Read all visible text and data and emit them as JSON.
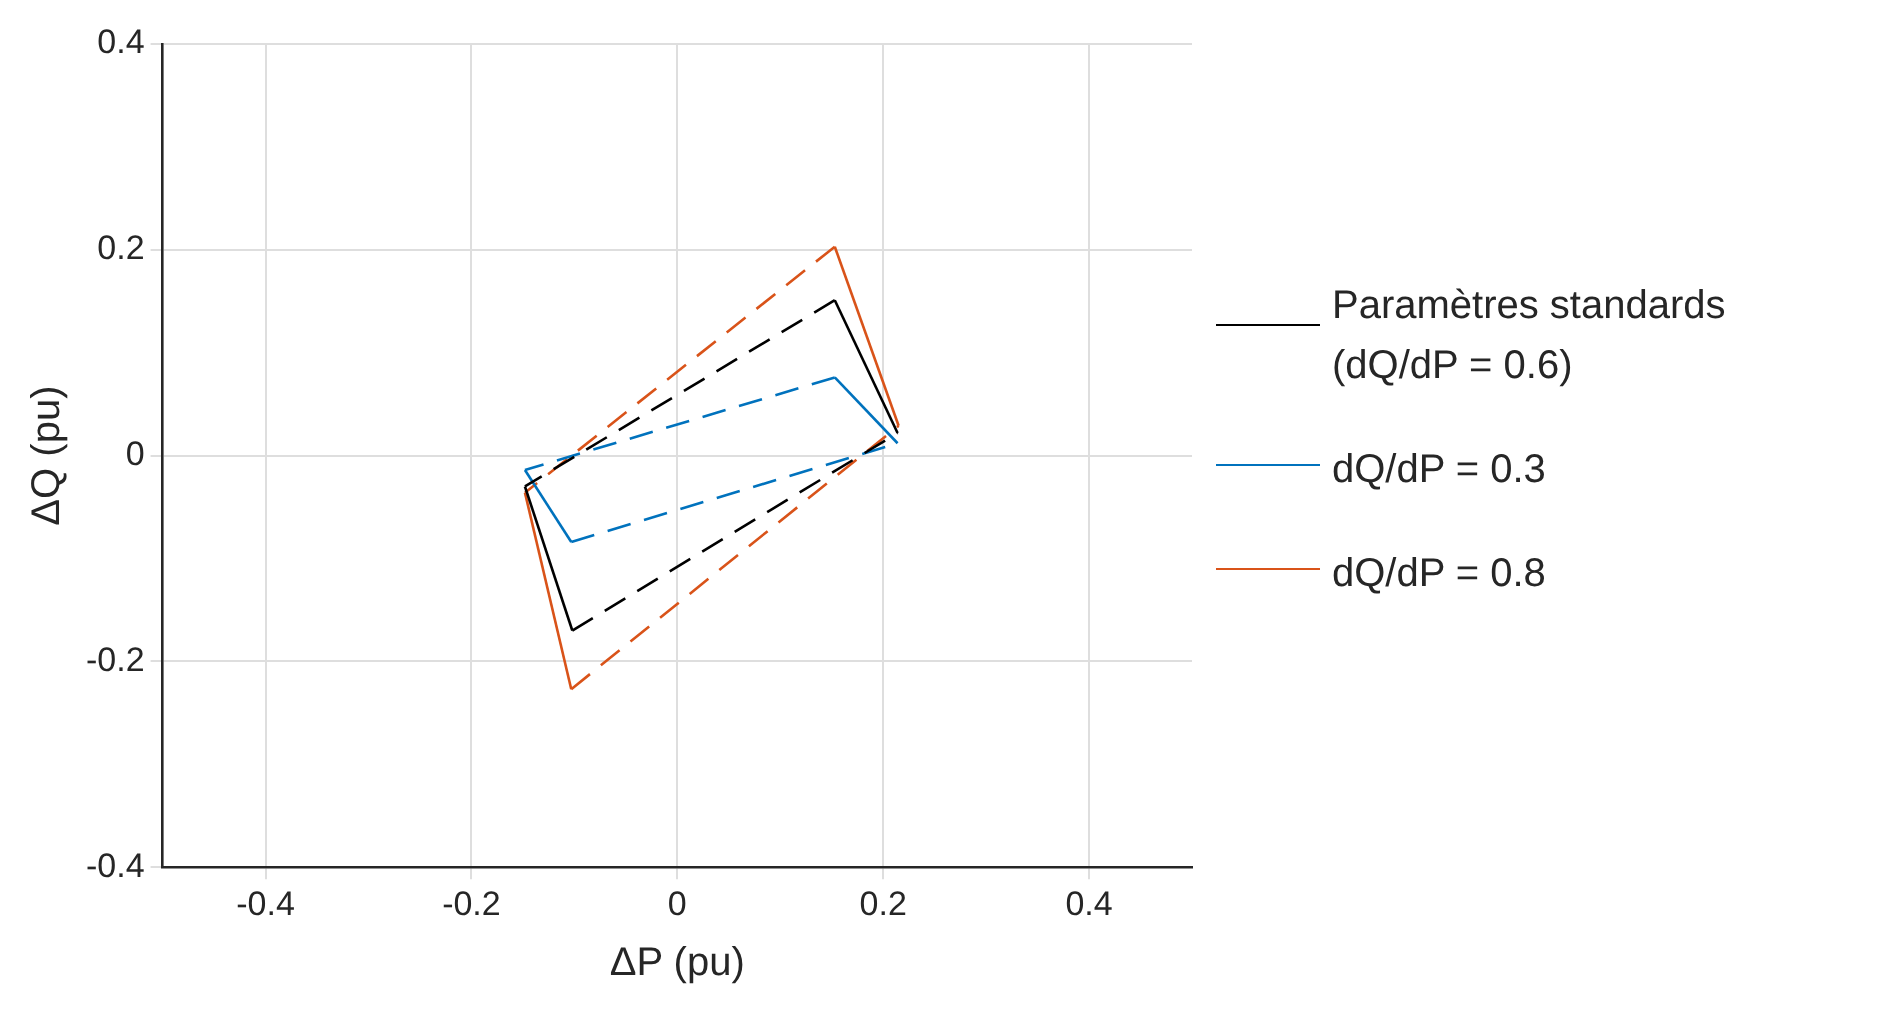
{
  "chart_data": {
    "type": "line",
    "xlabel": "ΔP (pu)",
    "ylabel": "ΔQ (pu)",
    "xlim": [
      -0.5,
      0.5
    ],
    "xticks": [
      -0.4,
      -0.2,
      0,
      0.2,
      0.4
    ],
    "ylim": [
      -0.4,
      0.4
    ],
    "yticks": [
      -0.4,
      -0.2,
      0,
      0.2,
      0.4
    ],
    "grid": true,
    "legend": "right",
    "marker": "none",
    "series": [
      {
        "name": "Paramètres standards (dQ/dP = 0.6)",
        "color": "#000000",
        "line_style": [
          "solid",
          "dashed",
          "solid",
          "dashed"
        ],
        "x": [
          -0.148,
          -0.102,
          0.214,
          0.153,
          -0.148
        ],
        "values": [
          -0.03,
          -0.17,
          0.022,
          0.151,
          -0.03
        ]
      },
      {
        "name": "dQ/dP = 0.3",
        "color": "#0072bd",
        "line_style": [
          "solid",
          "dashed",
          "solid",
          "dashed"
        ],
        "x": [
          -0.148,
          -0.103,
          0.214,
          0.153,
          -0.148
        ],
        "values": [
          -0.014,
          -0.084,
          0.012,
          0.076,
          -0.014
        ]
      },
      {
        "name": "dQ/dP = 0.8",
        "color": "#d95319",
        "line_style": [
          "solid",
          "dashed",
          "solid",
          "dashed"
        ],
        "x": [
          -0.148,
          -0.103,
          0.215,
          0.153,
          -0.148
        ],
        "values": [
          -0.036,
          -0.227,
          0.029,
          0.203,
          -0.036
        ]
      }
    ]
  }
}
